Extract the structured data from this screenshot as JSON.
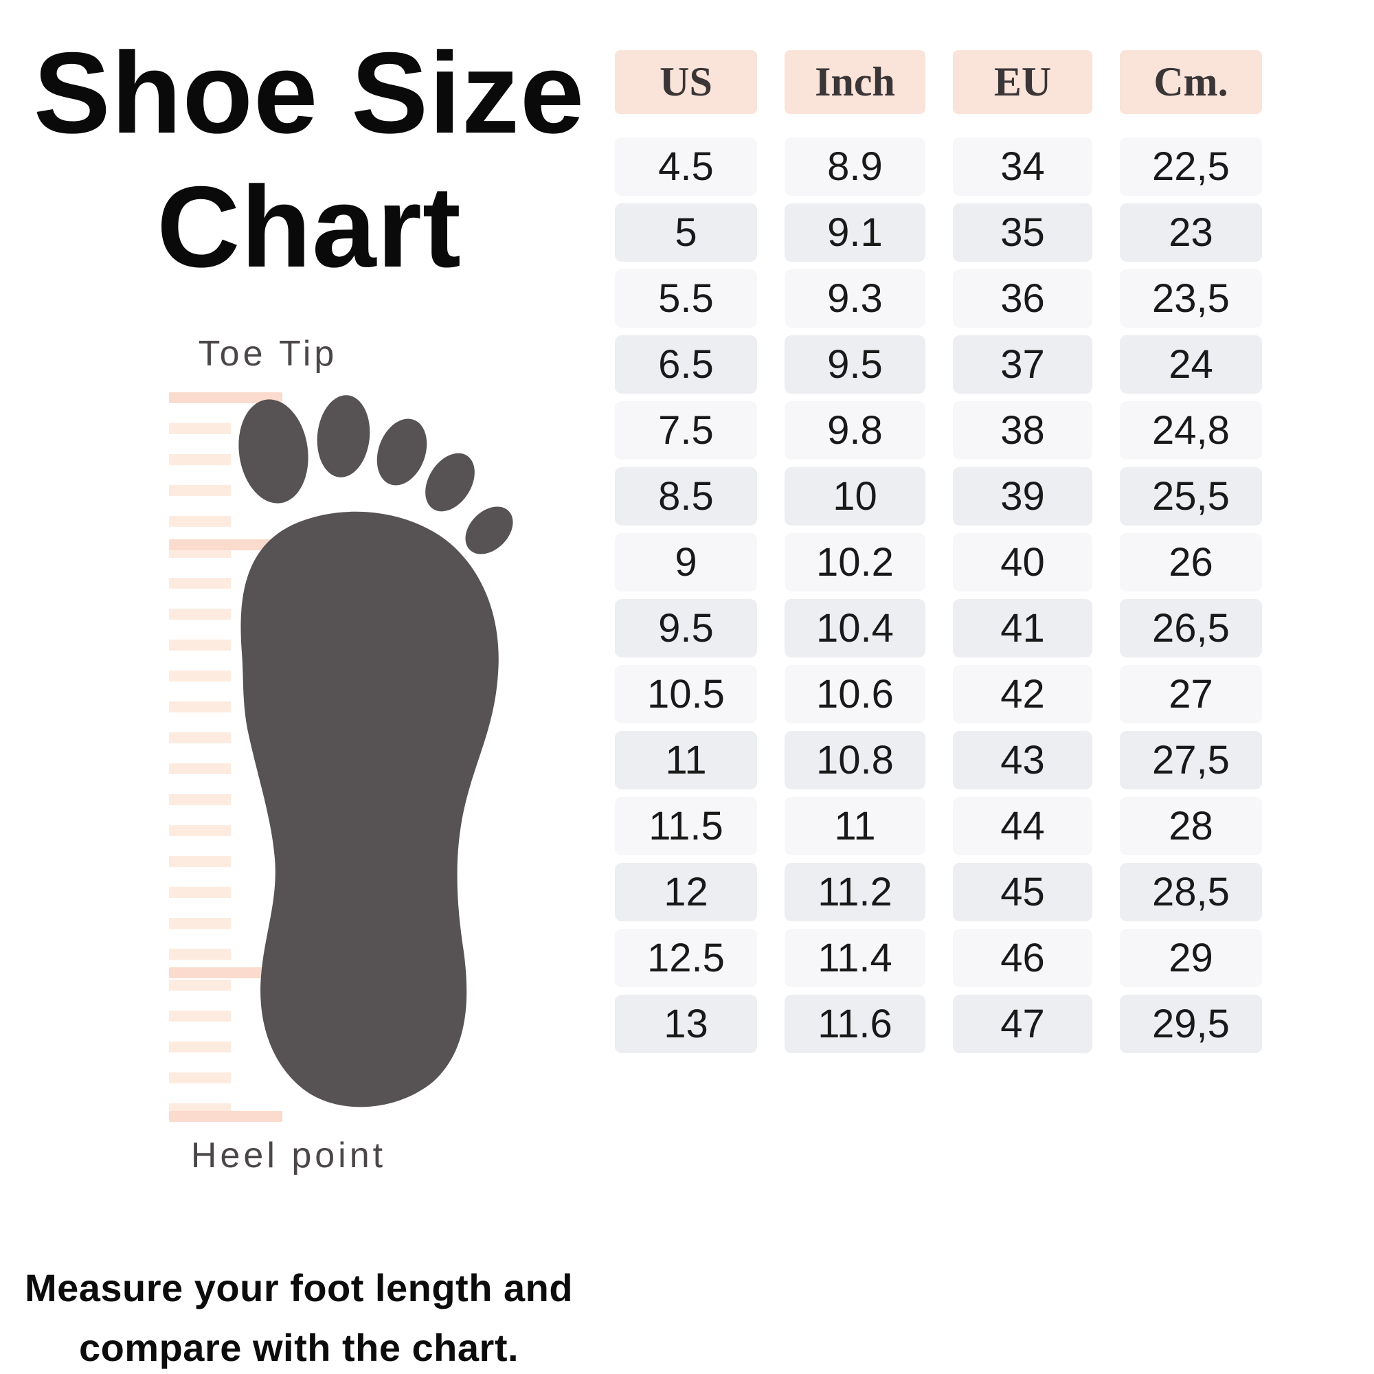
{
  "title": {
    "line1": "Shoe Size",
    "line2": "Chart"
  },
  "figure": {
    "top_label": "Toe Tip",
    "bottom_label": "Heel point"
  },
  "footer": {
    "line1": "Measure your foot length and",
    "line2": "compare with the chart."
  },
  "table": {
    "columns": [
      "US",
      "Inch",
      "EU",
      "Cm."
    ],
    "rows": [
      {
        "us": "4.5",
        "inch": "8.9",
        "eu": "34",
        "cm": "22,5"
      },
      {
        "us": "5",
        "inch": "9.1",
        "eu": "35",
        "cm": "23"
      },
      {
        "us": "5.5",
        "inch": "9.3",
        "eu": "36",
        "cm": "23,5"
      },
      {
        "us": "6.5",
        "inch": "9.5",
        "eu": "37",
        "cm": "24"
      },
      {
        "us": "7.5",
        "inch": "9.8",
        "eu": "38",
        "cm": "24,8"
      },
      {
        "us": "8.5",
        "inch": "10",
        "eu": "39",
        "cm": "25,5"
      },
      {
        "us": "9",
        "inch": "10.2",
        "eu": "40",
        "cm": "26"
      },
      {
        "us": "9.5",
        "inch": "10.4",
        "eu": "41",
        "cm": "26,5"
      },
      {
        "us": "10.5",
        "inch": "10.6",
        "eu": "42",
        "cm": "27"
      },
      {
        "us": "11",
        "inch": "10.8",
        "eu": "43",
        "cm": "27,5"
      },
      {
        "us": "11.5",
        "inch": "11",
        "eu": "44",
        "cm": "28"
      },
      {
        "us": "12",
        "inch": "11.2",
        "eu": "45",
        "cm": "28,5"
      },
      {
        "us": "12.5",
        "inch": "11.4",
        "eu": "46",
        "cm": "29"
      },
      {
        "us": "13",
        "inch": "11.6",
        "eu": "47",
        "cm": "29,5"
      }
    ]
  },
  "colors": {
    "header_bg": "#fae3d9",
    "row_light": "#f7f7f9",
    "row_dark": "#eceef1",
    "foot_gray": "#575354",
    "ruler_pink": "#fdebe0",
    "ruler_mark_pink": "#fbdbce",
    "label_gray": "#4b4748",
    "text_black": "#0a0a0a"
  },
  "chart_data": {
    "type": "table",
    "title": "Shoe Size Chart",
    "columns": [
      "US",
      "Inch",
      "EU",
      "Cm."
    ],
    "rows": [
      [
        4.5,
        8.9,
        34,
        "22,5"
      ],
      [
        5,
        9.1,
        35,
        "23"
      ],
      [
        5.5,
        9.3,
        36,
        "23,5"
      ],
      [
        6.5,
        9.5,
        37,
        "24"
      ],
      [
        7.5,
        9.8,
        38,
        "24,8"
      ],
      [
        8.5,
        10,
        39,
        "25,5"
      ],
      [
        9,
        10.2,
        40,
        "26"
      ],
      [
        9.5,
        10.4,
        41,
        "26,5"
      ],
      [
        10.5,
        10.6,
        42,
        "27"
      ],
      [
        11,
        10.8,
        43,
        "27,5"
      ],
      [
        11.5,
        11,
        44,
        "28"
      ],
      [
        12,
        11.2,
        45,
        "28,5"
      ],
      [
        12.5,
        11.4,
        46,
        "29"
      ],
      [
        13,
        11.6,
        47,
        "29,5"
      ]
    ],
    "annotations": [
      "Toe Tip",
      "Heel point",
      "Measure your foot length and compare with the chart."
    ]
  }
}
